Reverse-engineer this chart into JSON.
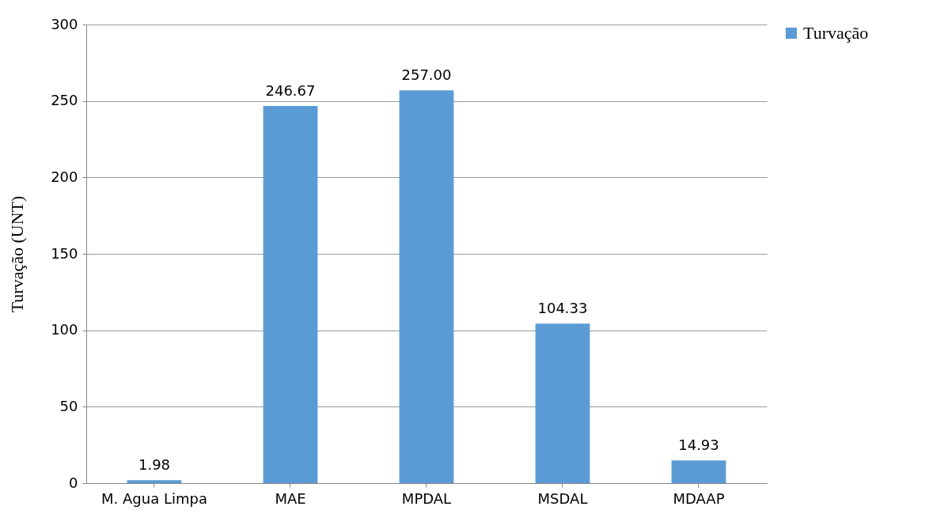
{
  "chart_data": {
    "type": "bar",
    "ylabel": "Turvação (UNT)",
    "categories": [
      "M. Agua Limpa",
      "MAE",
      "MPDAL",
      "MSDAL",
      "MDAAP"
    ],
    "series": [
      {
        "name": "Turvação",
        "color": "#5b9bd5",
        "values": [
          1.98,
          246.67,
          257,
          104.33,
          14.93
        ],
        "value_labels": [
          "1.98",
          "246.67",
          "257.00",
          "104.33",
          "14.93"
        ]
      }
    ],
    "ylim": [
      0,
      300
    ],
    "yticks": [
      0,
      50,
      100,
      150,
      200,
      250,
      300
    ],
    "grid": "y",
    "legend": "right"
  }
}
